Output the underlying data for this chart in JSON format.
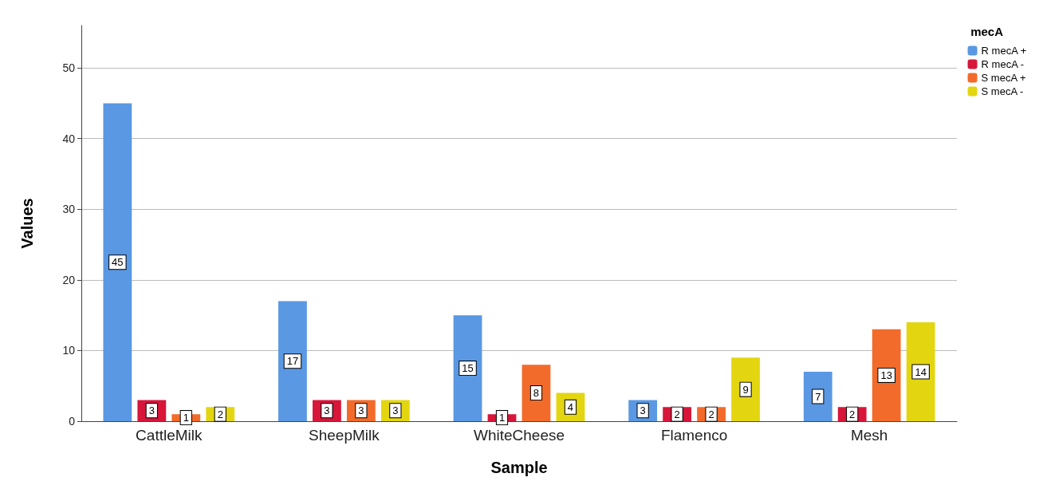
{
  "chart_data": {
    "type": "bar",
    "xlabel": "Sample",
    "ylabel": "Values",
    "legend_title": "mecA",
    "categories": [
      "CattleMilk",
      "SheepMilk",
      "WhiteCheese",
      "Flamenco",
      "Mesh"
    ],
    "series": [
      {
        "name": "R mecA +",
        "color": "#5a98e3",
        "values": [
          45,
          17,
          15,
          3,
          7
        ]
      },
      {
        "name": "R mecA -",
        "color": "#d7163a",
        "values": [
          3,
          3,
          1,
          2,
          2
        ]
      },
      {
        "name": "S mecA +",
        "color": "#f26b2b",
        "values": [
          1,
          3,
          8,
          2,
          13
        ]
      },
      {
        "name": "S mecA -",
        "color": "#e3d611",
        "values": [
          2,
          3,
          4,
          9,
          14
        ]
      }
    ],
    "ylim": [
      0,
      56
    ],
    "yticks": [
      0,
      10,
      20,
      30,
      40,
      50
    ],
    "grid": "y",
    "legend": "top right",
    "data_labels": true
  }
}
